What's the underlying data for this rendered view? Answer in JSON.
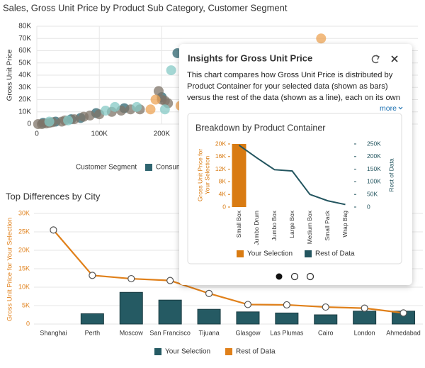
{
  "scatter": {
    "type": "scatter",
    "title": "Sales, Gross Unit Price by Product Sub Category, Customer Segment",
    "y_label": "Gross Unit Price",
    "legend_title": "Customer Segment",
    "xlim": [
      0,
      610000
    ],
    "ylim": [
      0,
      80000
    ],
    "xticks": [
      0,
      {
        "value": 100000,
        "label": "100K"
      },
      {
        "value": 200000,
        "label": "200K"
      }
    ],
    "yticks": [
      0,
      {
        "value": 10000,
        "label": "10K"
      },
      {
        "value": 20000,
        "label": "20K"
      },
      {
        "value": 30000,
        "label": "30K"
      },
      {
        "value": 40000,
        "label": "40K"
      },
      {
        "value": 50000,
        "label": "50K"
      },
      {
        "value": 60000,
        "label": "60K"
      },
      {
        "value": 70000,
        "label": "70K"
      },
      {
        "value": 80000,
        "label": "80K"
      }
    ],
    "series": [
      {
        "name": "Consumer",
        "color": "#2f6570",
        "x": [
          10000,
          30000,
          55000,
          70000,
          95000,
          140000,
          200000,
          225000,
          250000
        ],
        "y": [
          1000,
          2000,
          4000,
          5000,
          9000,
          13000,
          22000,
          58000,
          58000
        ]
      },
      {
        "color": "#7f7468",
        "x": [
          2000,
          8000,
          15000,
          20000,
          25000,
          40000,
          45000,
          60000,
          75000,
          85000,
          100000,
          120000,
          135000,
          150000,
          165000,
          195000,
          200000,
          205000,
          210000
        ],
        "y": [
          0,
          0,
          500,
          1000,
          1500,
          2000,
          3000,
          4000,
          6000,
          7000,
          8000,
          10000,
          11000,
          12000,
          12000,
          27000,
          20000,
          19000,
          17000
        ]
      },
      {
        "color": "#86c9c6",
        "x": [
          20000,
          50000,
          110000,
          125000,
          160000,
          215000,
          205000
        ],
        "y": [
          2000,
          3000,
          11000,
          14000,
          14000,
          44000,
          12000
        ]
      },
      {
        "color": "#eea455",
        "x": [
          230000,
          190000,
          182000,
          455000
        ],
        "y": [
          15000,
          20000,
          12000,
          70000
        ]
      }
    ]
  },
  "city_chart": {
    "type": "bar",
    "title": "Top Differences by City",
    "y_label": "Gross Unit Price for Your Selection",
    "categories": [
      "Shanghai",
      "Perth",
      "Moscow",
      "San Francisco",
      "Tijuana",
      "Glasgow",
      "Las Plumas",
      "Cairo",
      "London",
      "Ahmedabad"
    ],
    "ylim": [
      0,
      30000
    ],
    "yticks": [
      0,
      {
        "value": 5000,
        "label": "5K"
      },
      {
        "value": 10000,
        "label": "10K"
      },
      {
        "value": 15000,
        "label": "15K"
      },
      {
        "value": 20000,
        "label": "20K"
      },
      {
        "value": 25000,
        "label": "25K"
      },
      {
        "value": 30000,
        "label": "30K"
      }
    ],
    "series": [
      {
        "name": "Your Selection",
        "color": "#255a63",
        "values": [
          null,
          2800,
          8600,
          6500,
          4000,
          3300,
          3000,
          2500,
          3500,
          3500
        ]
      },
      {
        "name": "Rest of Data",
        "color": "#e0801a",
        "type": "line",
        "values": [
          25500,
          13200,
          12300,
          11800,
          8300,
          5300,
          5200,
          4600,
          4300,
          3000
        ]
      }
    ]
  },
  "panel": {
    "title": "Insights for Gross Unit Price",
    "description": "This chart compares how Gross Unit Price is distributed by Product Container for your selected data (shown as bars) versus the rest of the data (shown as a line), each on its own scale. Yo...",
    "more": "more",
    "chart": {
      "type": "bar",
      "title": "Breakdown by Product Container",
      "y_label": [
        "Gross Unit Price for",
        "Your Selection"
      ],
      "y2_label": "Rest of Data",
      "categories": [
        "Small Box",
        "Jumbo Drum",
        "Jumbo Box",
        "Large Box",
        "Medium Box",
        "Small Pack",
        "Wrap Bag"
      ],
      "ylim": [
        0,
        20000
      ],
      "yticks": [
        0,
        {
          "value": 4000,
          "label": "4K"
        },
        {
          "value": 8000,
          "label": "8K"
        },
        {
          "value": 12000,
          "label": "12K"
        },
        {
          "value": 16000,
          "label": "16K"
        },
        {
          "value": 20000,
          "label": "20K"
        }
      ],
      "y2lim": [
        0,
        250000
      ],
      "y2ticks": [
        0,
        {
          "value": 50000,
          "label": "50K"
        },
        {
          "value": 100000,
          "label": "100K"
        },
        {
          "value": 150000,
          "label": "150K"
        },
        {
          "value": 200000,
          "label": "200K"
        },
        {
          "value": 250000,
          "label": "250K"
        }
      ],
      "series": [
        {
          "name": "Your Selection",
          "color": "#d97b12",
          "values": [
            20000,
            null,
            null,
            null,
            null,
            null,
            null
          ]
        },
        {
          "name": "Rest of Data",
          "color": "#23555f",
          "axis": "y2",
          "type": "line",
          "values": [
            245000,
            195000,
            148000,
            143000,
            50000,
            25000,
            10000
          ]
        }
      ]
    }
  }
}
